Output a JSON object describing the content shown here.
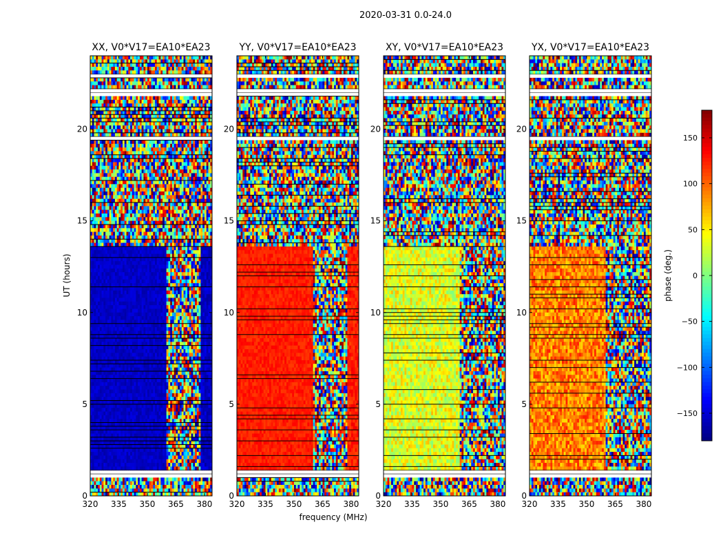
{
  "chart_data": {
    "type": "heatmap",
    "suptitle": "2020-03-31 0.0-24.0",
    "xlabel": "frequency (MHz)",
    "ylabel": "UT (hours)",
    "xlim": [
      320,
      384
    ],
    "ylim": [
      0,
      24
    ],
    "xticks": [
      320,
      335,
      350,
      365,
      380
    ],
    "yticks": [
      0,
      5,
      10,
      15,
      20
    ],
    "colorbar": {
      "label": "phase (deg.)",
      "range": [
        -180,
        180
      ],
      "ticks": [
        -150,
        -100,
        -50,
        0,
        50,
        100,
        150
      ],
      "colormap": "jet"
    },
    "panels": [
      {
        "title": "XX, V0*V17=EA10*EA23",
        "coherent_phase_deg": -155,
        "coherence_edge_mhz": 360
      },
      {
        "title": "YY, V0*V17=EA10*EA23",
        "coherent_phase_deg": 125,
        "coherence_edge_mhz": 360
      },
      {
        "title": "XY, V0*V17=EA10*EA23",
        "coherent_phase_deg": 35,
        "coherence_edge_mhz": 360
      },
      {
        "title": "YX, V0*V17=EA10*EA23",
        "coherent_phase_deg": 90,
        "coherence_edge_mhz": 360
      }
    ],
    "flagged_ut_ranges_hours": [
      [
        1.1,
        1.35
      ],
      [
        19.4,
        19.6
      ],
      [
        21.8,
        22.1
      ],
      [
        22.8,
        23.05
      ]
    ],
    "coherent_ut_range_hours": [
      1.4,
      13.6
    ]
  }
}
